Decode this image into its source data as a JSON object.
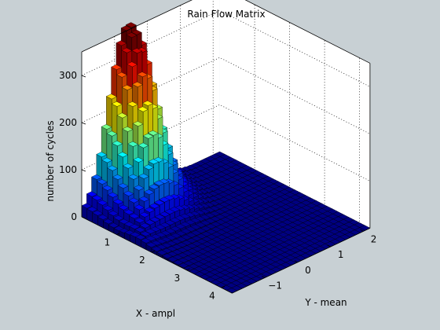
{
  "chart_data": {
    "type": "bar3d",
    "title": "Rain Flow Matrix",
    "xlabel": "X - ampl",
    "ylabel": "Y - mean",
    "zlabel": "number of cycles",
    "xlim": [
      0,
      4.3
    ],
    "ylim": [
      -2,
      2.2
    ],
    "zlim": [
      0,
      350
    ],
    "xticks": [
      1,
      2,
      3,
      4
    ],
    "yticks": [
      -1,
      0,
      1,
      2
    ],
    "zticks": [
      0,
      100,
      200,
      300
    ],
    "grid": true,
    "colormap": "jet",
    "peak": {
      "x": 0.15,
      "y": -0.7,
      "value": 345
    },
    "note": "approximate bar heights estimated from the rendering; ridge of higher counts along the low-amplitude edge, decaying toward high amplitude and along a diagonal band"
  }
}
